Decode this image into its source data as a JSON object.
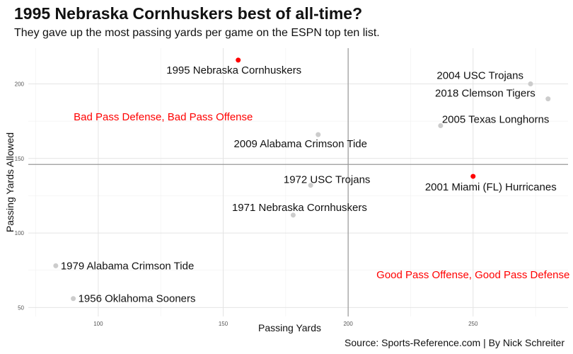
{
  "chart_data": {
    "type": "scatter",
    "title": "1995 Nebraska Cornhuskers best of all-time?",
    "subtitle": "They gave up the most passing yards per game on the ESPN top ten list.",
    "caption": "Source: Sports-Reference.com | By Nick Schreiter",
    "xlabel": "Passing Yards",
    "ylabel": "Passing Yards Allowed",
    "xlim": [
      72,
      288
    ],
    "ylim": [
      44,
      224
    ],
    "xticks": [
      100,
      150,
      200,
      250
    ],
    "yticks": [
      50,
      100,
      150,
      200
    ],
    "grid": true,
    "reference_lines": {
      "x": 200,
      "y": 146
    },
    "colors": {
      "highlight": "#ff0000",
      "default": "#cccccc",
      "annotation": "#ff0000"
    },
    "points": [
      {
        "label": "1995 Nebraska Cornhuskers",
        "x": 156,
        "y": 216,
        "highlight": true
      },
      {
        "label": "2004 USC Trojans",
        "x": 273,
        "y": 200,
        "highlight": false
      },
      {
        "label": "2018 Clemson Tigers",
        "x": 280,
        "y": 190,
        "highlight": false
      },
      {
        "label": "2005 Texas Longhorns",
        "x": 237,
        "y": 172,
        "highlight": false
      },
      {
        "label": "2009 Alabama Crimson Tide",
        "x": 188,
        "y": 166,
        "highlight": false
      },
      {
        "label": "2001 Miami (FL) Hurricanes",
        "x": 250,
        "y": 138,
        "highlight": true
      },
      {
        "label": "1972 USC Trojans",
        "x": 185,
        "y": 132,
        "highlight": false
      },
      {
        "label": "1971 Nebraska Cornhuskers",
        "x": 178,
        "y": 112,
        "highlight": false
      },
      {
        "label": "1979 Alabama Crimson Tide",
        "x": 83,
        "y": 78,
        "highlight": false
      },
      {
        "label": "1956 Oklahoma Sooners",
        "x": 90,
        "y": 56,
        "highlight": false
      }
    ],
    "annotations": [
      {
        "text": "Bad Pass Defense, Bad Pass Offense",
        "x": 126,
        "y": 178
      },
      {
        "text": "Good Pass Offense, Good Pass Defense",
        "x": 250,
        "y": 72
      }
    ]
  }
}
